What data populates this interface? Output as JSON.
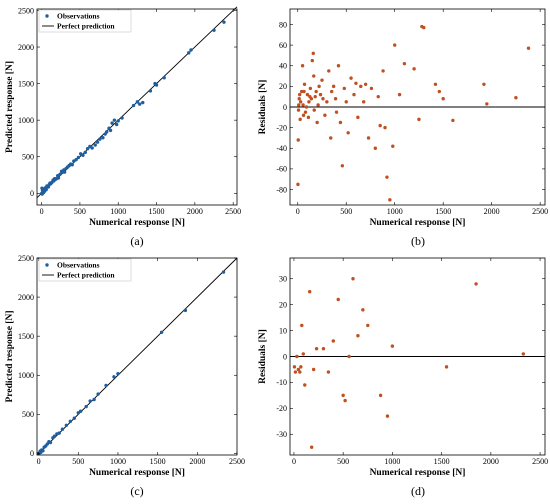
{
  "chart_data": [
    {
      "panel": "(a)",
      "type": "scatter",
      "xlabel": "Numerical response [N]",
      "ylabel": "Predicted response [N]",
      "xlim": [
        -60,
        2550
      ],
      "ylim": [
        -160,
        2520
      ],
      "xticks": [
        0,
        500,
        1000,
        1500,
        2000,
        2500
      ],
      "yticks": [
        0,
        500,
        1000,
        1500,
        2000,
        2500
      ],
      "legend": {
        "position": "top-left",
        "entries": [
          "Observations",
          "Perfect prediction"
        ]
      },
      "reference_line": {
        "name": "Perfect prediction",
        "from": [
          -60,
          -60
        ],
        "to": [
          2550,
          2550
        ],
        "color": "#000000"
      },
      "series": [
        {
          "name": "Observations",
          "color": "#1f5fa0",
          "x": [
            2,
            5,
            8,
            12,
            15,
            20,
            25,
            30,
            40,
            50,
            60,
            70,
            80,
            90,
            100,
            110,
            120,
            135,
            150,
            160,
            170,
            180,
            195,
            210,
            220,
            240,
            260,
            275,
            290,
            300,
            320,
            340,
            360,
            380,
            400,
            420,
            450,
            480,
            510,
            540,
            570,
            600,
            630,
            660,
            700,
            730,
            760,
            800,
            830,
            850,
            880,
            900,
            920,
            950,
            980,
            1000,
            1050,
            1200,
            1250,
            1280,
            1320,
            1420,
            1480,
            1500,
            1600,
            1920,
            1950,
            2250,
            2380
          ],
          "y": [
            0,
            70,
            -10,
            40,
            5,
            30,
            10,
            60,
            30,
            75,
            50,
            100,
            85,
            90,
            120,
            140,
            130,
            150,
            180,
            170,
            200,
            190,
            200,
            240,
            210,
            260,
            300,
            290,
            320,
            290,
            340,
            360,
            380,
            400,
            390,
            440,
            460,
            490,
            540,
            520,
            560,
            610,
            640,
            620,
            660,
            700,
            740,
            760,
            810,
            840,
            890,
            860,
            960,
            1000,
            940,
            990,
            1030,
            1200,
            1250,
            1220,
            1240,
            1400,
            1500,
            1480,
            1580,
            1920,
            1960,
            2230,
            2340
          ]
        }
      ]
    },
    {
      "panel": "(b)",
      "type": "scatter",
      "xlabel": "Numerical response [N]",
      "ylabel": "Residuals [N]",
      "xlim": [
        -80,
        2550
      ],
      "ylim": [
        -95,
        95
      ],
      "xticks": [
        0,
        500,
        1000,
        1500,
        2000,
        2500
      ],
      "yticks": [
        -80,
        -60,
        -40,
        -20,
        0,
        20,
        40,
        60,
        80
      ],
      "reference_line": {
        "from": [
          -80,
          0
        ],
        "to": [
          2550,
          0
        ],
        "color": "#000000"
      },
      "series": [
        {
          "name": "",
          "color": "#c0501f",
          "x": [
            2,
            5,
            8,
            10,
            15,
            20,
            25,
            30,
            40,
            50,
            55,
            60,
            65,
            70,
            80,
            90,
            100,
            110,
            115,
            125,
            130,
            140,
            150,
            160,
            165,
            170,
            180,
            190,
            200,
            210,
            220,
            235,
            250,
            260,
            280,
            300,
            320,
            340,
            350,
            370,
            390,
            400,
            420,
            440,
            460,
            480,
            500,
            520,
            550,
            580,
            600,
            620,
            650,
            680,
            700,
            730,
            760,
            800,
            830,
            850,
            880,
            900,
            920,
            950,
            980,
            1000,
            1050,
            1100,
            1200,
            1250,
            1280,
            1300,
            1420,
            1460,
            1500,
            1600,
            1920,
            1950,
            2250,
            2380
          ],
          "y": [
            -75,
            -32,
            -3,
            2,
            8,
            12,
            -12,
            5,
            15,
            40,
            2,
            -8,
            15,
            22,
            -5,
            0,
            12,
            -10,
            5,
            10,
            18,
            8,
            45,
            52,
            30,
            -3,
            10,
            15,
            -15,
            2,
            20,
            12,
            26,
            8,
            -8,
            5,
            35,
            -30,
            15,
            20,
            8,
            -5,
            40,
            -15,
            -57,
            18,
            5,
            -25,
            28,
            12,
            23,
            -10,
            20,
            5,
            22,
            -30,
            18,
            -40,
            10,
            -18,
            35,
            -20,
            -68,
            -90,
            -38,
            60,
            12,
            42,
            37,
            -12,
            78,
            77,
            22,
            15,
            8,
            -13,
            22,
            3,
            9,
            57
          ]
        }
      ]
    },
    {
      "panel": "(c)",
      "type": "scatter",
      "xlabel": "Numerical response [N]",
      "ylabel": "Predicted response [N]",
      "xlim": [
        -20,
        2500
      ],
      "ylim": [
        -20,
        2500
      ],
      "xticks": [
        0,
        500,
        1000,
        1500,
        2000,
        2500
      ],
      "yticks": [
        0,
        500,
        1000,
        1500,
        2000,
        2500
      ],
      "legend": {
        "position": "top-left",
        "entries": [
          "Observations",
          "Perfect prediction"
        ]
      },
      "reference_line": {
        "name": "Perfect prediction",
        "from": [
          -20,
          -20
        ],
        "to": [
          2500,
          2500
        ],
        "color": "#000000"
      },
      "series": [
        {
          "name": "Observations",
          "color": "#1f5fa0",
          "x": [
            0,
            10,
            20,
            30,
            40,
            55,
            70,
            90,
            110,
            130,
            150,
            180,
            200,
            230,
            260,
            300,
            350,
            400,
            450,
            500,
            530,
            600,
            650,
            700,
            750,
            850,
            950,
            1000,
            1550,
            1850,
            2330
          ],
          "y": [
            0,
            5,
            30,
            15,
            45,
            35,
            80,
            95,
            120,
            150,
            140,
            200,
            220,
            250,
            260,
            310,
            360,
            410,
            450,
            520,
            540,
            600,
            670,
            690,
            760,
            870,
            980,
            1020,
            1550,
            1830,
            2320
          ]
        }
      ]
    },
    {
      "panel": "(d)",
      "type": "scatter",
      "xlabel": "Numerical response [N]",
      "ylabel": "Residuals [N]",
      "xlim": [
        -40,
        2550
      ],
      "ylim": [
        -38,
        38
      ],
      "xticks": [
        0,
        500,
        1000,
        1500,
        2000,
        2500
      ],
      "yticks": [
        -30,
        -20,
        -10,
        0,
        10,
        20,
        30
      ],
      "reference_line": {
        "from": [
          -40,
          0
        ],
        "to": [
          2550,
          0
        ],
        "color": "#000000"
      },
      "series": [
        {
          "name": "",
          "color": "#c0501f",
          "x": [
            5,
            15,
            30,
            45,
            60,
            70,
            80,
            95,
            110,
            160,
            180,
            200,
            230,
            300,
            350,
            400,
            450,
            500,
            520,
            560,
            600,
            650,
            700,
            750,
            880,
            950,
            1000,
            1550,
            1850,
            2330
          ],
          "y": [
            -4,
            -6,
            0,
            -5,
            -6,
            -4,
            12,
            1,
            -11,
            25,
            -35,
            -5,
            3,
            3,
            -6,
            6,
            22,
            -15,
            -17,
            0,
            30,
            8,
            18,
            12,
            -15,
            -23,
            4,
            -4,
            28,
            1
          ]
        }
      ]
    }
  ]
}
